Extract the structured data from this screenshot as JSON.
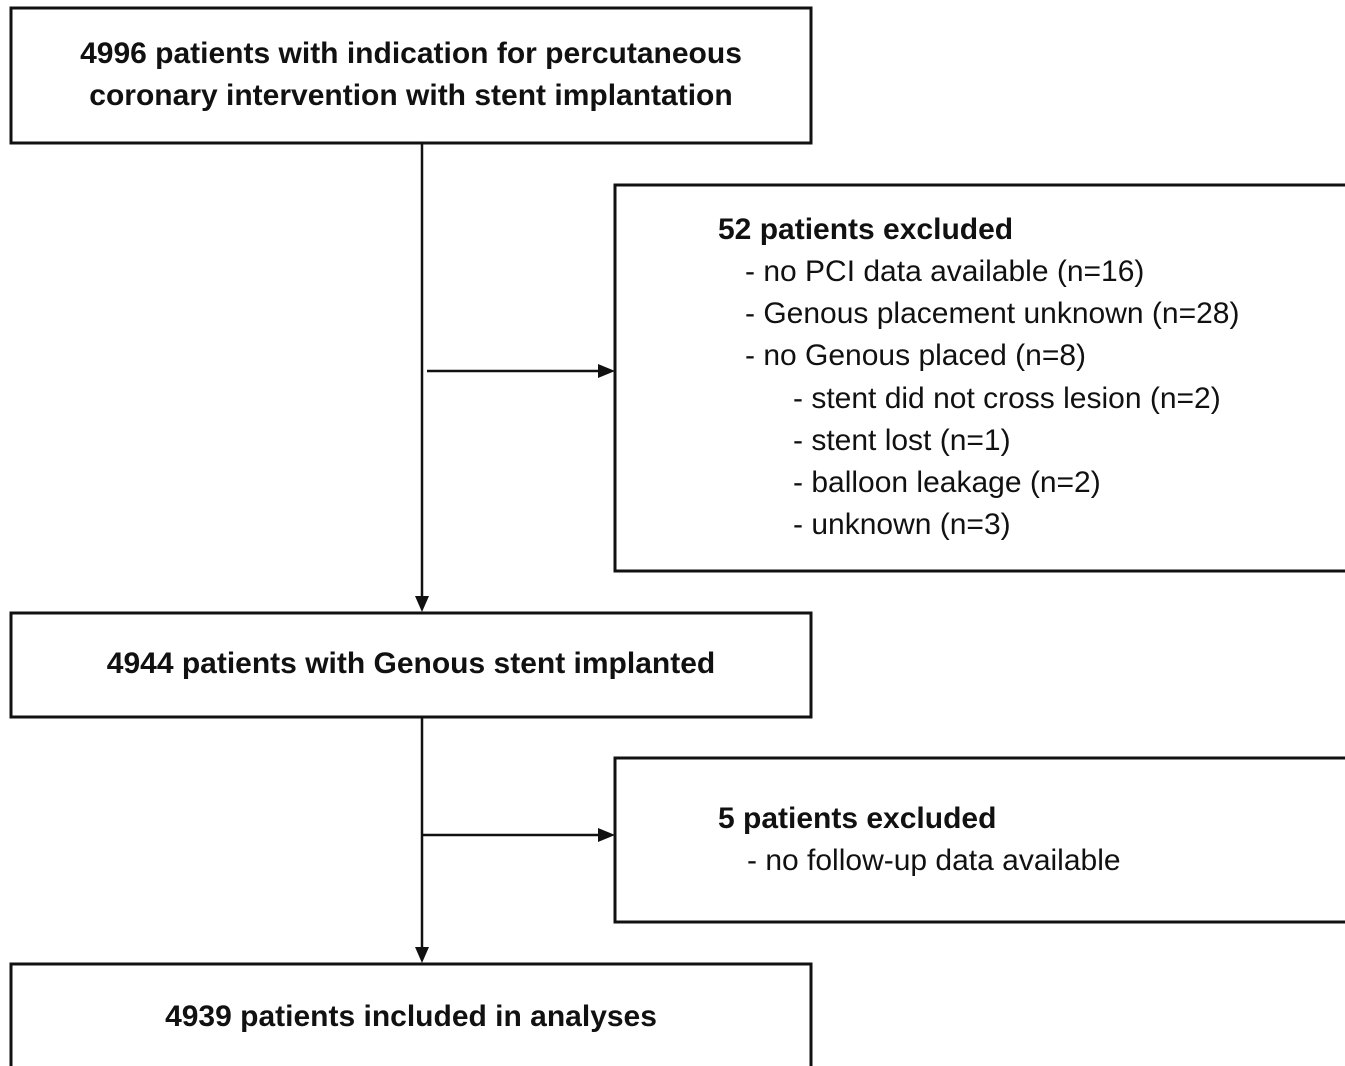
{
  "nodes": [
    {
      "lines": [
        "4996 patients with indication for percutaneous",
        "coronary intervention with stent implantation"
      ]
    },
    {
      "title": "52 patients excluded",
      "items": [
        {
          "text": "- no PCI data available (n=16)"
        },
        {
          "text": "- Genous placement unknown (n=28)"
        },
        {
          "text": "- no Genous placed (n=8)",
          "items": [
            {
              "text": "- stent did not cross lesion (n=2)"
            },
            {
              "text": "- stent lost (n=1)"
            },
            {
              "text": "- balloon leakage (n=2)"
            },
            {
              "text": "- unknown (n=3)"
            }
          ]
        }
      ]
    },
    {
      "lines": [
        "4944 patients with Genous stent implanted"
      ]
    },
    {
      "title": "5 patients excluded",
      "items": [
        {
          "text": "- no follow-up data available"
        }
      ]
    },
    {
      "lines": [
        "4939 patients included in analyses"
      ]
    }
  ]
}
